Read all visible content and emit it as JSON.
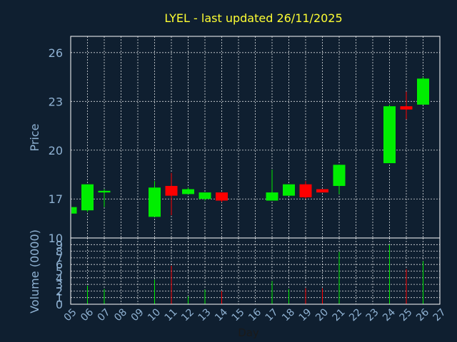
{
  "chart_data": {
    "type": "candlestick",
    "title": "LYEL - last updated 26/11/2025",
    "xlabel": "Day",
    "ylabel_price": "Price",
    "ylabel_volume": "Volume (0000)",
    "colors": {
      "background": "#0f1f30",
      "grid": "#ffffff",
      "title": "#ffff33",
      "axis_text": "#8fb2d3",
      "up": "#00ee00",
      "down": "#ff0000"
    },
    "grid": true,
    "x_ticks": [
      "05",
      "06",
      "07",
      "08",
      "09",
      "10",
      "11",
      "12",
      "13",
      "14",
      "15",
      "16",
      "17",
      "18",
      "19",
      "20",
      "21",
      "22",
      "23",
      "24",
      "25",
      "26",
      "27"
    ],
    "price_ylim": [
      14.6,
      27.0
    ],
    "price_ticks": [
      {
        "value": 17,
        "label": "17"
      },
      {
        "value": 20,
        "label": "20"
      },
      {
        "value": 23,
        "label": "23"
      },
      {
        "value": 26,
        "label": "26"
      }
    ],
    "volume_ylim": [
      0,
      10
    ],
    "volume_ticks": [
      {
        "value": 0,
        "label": "0"
      },
      {
        "value": 1,
        "label": "1"
      },
      {
        "value": 2,
        "label": "2"
      },
      {
        "value": 3,
        "label": "3"
      },
      {
        "value": 4,
        "label": "4"
      },
      {
        "value": 5,
        "label": "5"
      },
      {
        "value": 6,
        "label": "6"
      },
      {
        "value": 7,
        "label": "7"
      },
      {
        "value": 8,
        "label": "8"
      },
      {
        "value": 9,
        "label": "9"
      },
      {
        "value": 10,
        "label": "10"
      }
    ],
    "candles": [
      {
        "day": "05",
        "open": 16.1,
        "high": 16.5,
        "low": 16.1,
        "close": 16.5,
        "volume": 0
      },
      {
        "day": "06",
        "open": 16.3,
        "high": 17.9,
        "low": 16.2,
        "close": 17.9,
        "volume": 2.8
      },
      {
        "day": "07",
        "open": 17.4,
        "high": 17.6,
        "low": 16.5,
        "close": 17.5,
        "volume": 2.3
      },
      {
        "day": "10",
        "open": 15.9,
        "high": 18.1,
        "low": 15.9,
        "close": 17.7,
        "volume": 3.7
      },
      {
        "day": "11",
        "open": 17.8,
        "high": 18.6,
        "low": 16.0,
        "close": 17.2,
        "volume": 5.8
      },
      {
        "day": "12",
        "open": 17.3,
        "high": 17.7,
        "low": 17.3,
        "close": 17.6,
        "volume": 1.2
      },
      {
        "day": "13",
        "open": 17.0,
        "high": 17.4,
        "low": 16.9,
        "close": 17.4,
        "volume": 2.2
      },
      {
        "day": "14",
        "open": 17.4,
        "high": 17.4,
        "low": 16.8,
        "close": 16.9,
        "volume": 2.0
      },
      {
        "day": "17",
        "open": 16.9,
        "high": 18.8,
        "low": 16.9,
        "close": 17.4,
        "volume": 3.5
      },
      {
        "day": "18",
        "open": 17.2,
        "high": 17.9,
        "low": 17.2,
        "close": 17.9,
        "volume": 2.3
      },
      {
        "day": "19",
        "open": 17.9,
        "high": 18.1,
        "low": 17.0,
        "close": 17.1,
        "volume": 2.4
      },
      {
        "day": "20",
        "open": 17.6,
        "high": 17.6,
        "low": 17.4,
        "close": 17.4,
        "volume": 2.4
      },
      {
        "day": "21",
        "open": 17.8,
        "high": 19.1,
        "low": 17.3,
        "close": 19.1,
        "volume": 7.9
      },
      {
        "day": "24",
        "open": 19.2,
        "high": 22.8,
        "low": 19.2,
        "close": 22.7,
        "volume": 9.0
      },
      {
        "day": "25",
        "open": 22.7,
        "high": 23.6,
        "low": 21.9,
        "close": 22.5,
        "volume": 5.3
      },
      {
        "day": "26",
        "open": 22.8,
        "high": 24.5,
        "low": 22.8,
        "close": 24.4,
        "volume": 6.5
      }
    ]
  }
}
